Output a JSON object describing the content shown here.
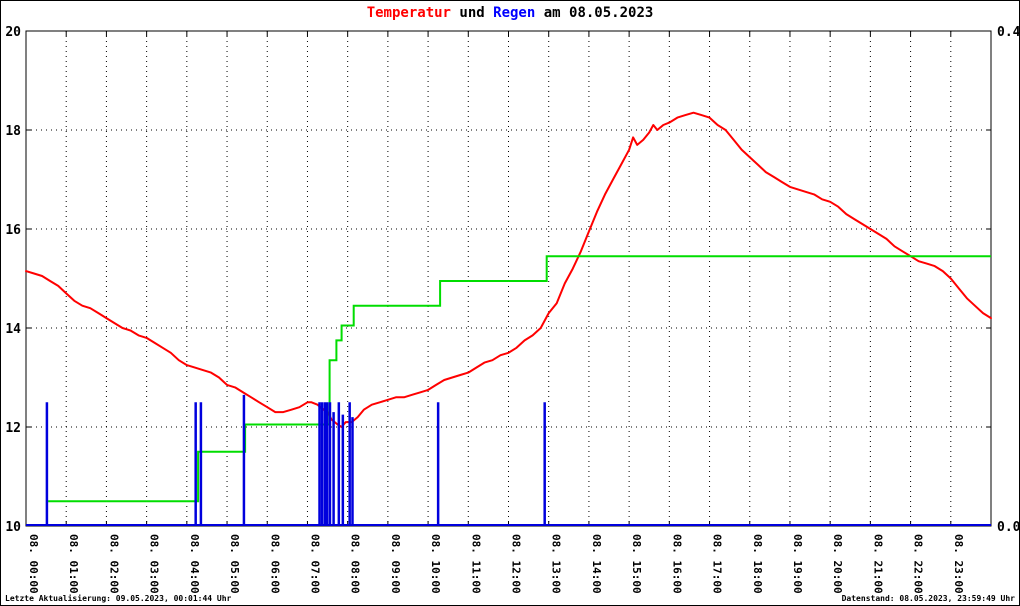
{
  "title": {
    "temperature": "Temperatur",
    "connector": " und ",
    "rain": "Regen",
    "date": " am 08.05.2023"
  },
  "footer": {
    "left": "Letzte Aktualisierung: 09.05.2023, 00:01:44 Uhr",
    "right": "Datenstand: 08.05.2023, 23:59:49 Uhr"
  },
  "colors": {
    "temperature": "#ff0000",
    "rain": "#0000dd",
    "rain_cumulative": "#00dd00",
    "title_rain": "#0000ff",
    "axis": "#000000",
    "background": "#ffffff"
  },
  "chart_data": {
    "type": "line",
    "title": "Temperatur und Regen am 08.05.2023",
    "grid": "dotted",
    "x_axis": {
      "min_hour": 0,
      "max_hour": 24,
      "tick_labels": [
        "08. 00:00",
        "08. 01:00",
        "08. 02:00",
        "08. 03:00",
        "08. 04:00",
        "08. 05:00",
        "08. 06:00",
        "08. 07:00",
        "08. 08:00",
        "08. 09:00",
        "08. 10:00",
        "08. 11:00",
        "08. 12:00",
        "08. 13:00",
        "08. 14:00",
        "08. 15:00",
        "08. 16:00",
        "08. 17:00",
        "08. 18:00",
        "08. 19:00",
        "08. 20:00",
        "08. 21:00",
        "08. 22:00",
        "08. 23:00"
      ]
    },
    "y_axis_left": {
      "min": 10,
      "max": 20,
      "ticks": [
        10,
        12,
        14,
        16,
        18,
        20
      ]
    },
    "y_axis_right": {
      "min": 0.0,
      "max": 0.4,
      "ticks": [
        {
          "value": 0.0,
          "label": "0.0"
        },
        {
          "value": 0.4,
          "label": "0.4"
        }
      ]
    },
    "series": [
      {
        "name": "Temperatur",
        "type": "line",
        "axis": "left",
        "color": "#ff0000",
        "points": [
          [
            0,
            15.15
          ],
          [
            0.2,
            15.1
          ],
          [
            0.4,
            15.05
          ],
          [
            0.6,
            14.95
          ],
          [
            0.8,
            14.85
          ],
          [
            1,
            14.7
          ],
          [
            1.2,
            14.55
          ],
          [
            1.4,
            14.45
          ],
          [
            1.6,
            14.4
          ],
          [
            1.8,
            14.3
          ],
          [
            2,
            14.2
          ],
          [
            2.2,
            14.1
          ],
          [
            2.4,
            14.0
          ],
          [
            2.6,
            13.95
          ],
          [
            2.8,
            13.85
          ],
          [
            3,
            13.8
          ],
          [
            3.2,
            13.7
          ],
          [
            3.4,
            13.6
          ],
          [
            3.6,
            13.5
          ],
          [
            3.8,
            13.35
          ],
          [
            4,
            13.25
          ],
          [
            4.2,
            13.2
          ],
          [
            4.4,
            13.15
          ],
          [
            4.6,
            13.1
          ],
          [
            4.8,
            13.0
          ],
          [
            5,
            12.85
          ],
          [
            5.2,
            12.8
          ],
          [
            5.4,
            12.7
          ],
          [
            5.6,
            12.6
          ],
          [
            5.8,
            12.5
          ],
          [
            6,
            12.4
          ],
          [
            6.2,
            12.3
          ],
          [
            6.4,
            12.3
          ],
          [
            6.6,
            12.35
          ],
          [
            6.8,
            12.4
          ],
          [
            7,
            12.5
          ],
          [
            7.1,
            12.5
          ],
          [
            7.25,
            12.45
          ],
          [
            7.4,
            12.35
          ],
          [
            7.5,
            12.3
          ],
          [
            7.6,
            12.15
          ],
          [
            7.75,
            12.05
          ],
          [
            7.85,
            12.0
          ],
          [
            7.95,
            12.1
          ],
          [
            8.1,
            12.1
          ],
          [
            8.25,
            12.2
          ],
          [
            8.4,
            12.35
          ],
          [
            8.6,
            12.45
          ],
          [
            8.8,
            12.5
          ],
          [
            9,
            12.55
          ],
          [
            9.2,
            12.6
          ],
          [
            9.4,
            12.6
          ],
          [
            9.6,
            12.65
          ],
          [
            9.8,
            12.7
          ],
          [
            10,
            12.75
          ],
          [
            10.2,
            12.85
          ],
          [
            10.4,
            12.95
          ],
          [
            10.6,
            13.0
          ],
          [
            10.8,
            13.05
          ],
          [
            11,
            13.1
          ],
          [
            11.2,
            13.2
          ],
          [
            11.4,
            13.3
          ],
          [
            11.6,
            13.35
          ],
          [
            11.8,
            13.45
          ],
          [
            12,
            13.5
          ],
          [
            12.2,
            13.6
          ],
          [
            12.4,
            13.75
          ],
          [
            12.6,
            13.85
          ],
          [
            12.8,
            14.0
          ],
          [
            13,
            14.3
          ],
          [
            13.2,
            14.5
          ],
          [
            13.4,
            14.9
          ],
          [
            13.6,
            15.2
          ],
          [
            13.8,
            15.55
          ],
          [
            14,
            15.95
          ],
          [
            14.2,
            16.35
          ],
          [
            14.4,
            16.7
          ],
          [
            14.6,
            17.0
          ],
          [
            14.8,
            17.3
          ],
          [
            15,
            17.6
          ],
          [
            15.1,
            17.85
          ],
          [
            15.2,
            17.7
          ],
          [
            15.35,
            17.8
          ],
          [
            15.5,
            17.95
          ],
          [
            15.6,
            18.1
          ],
          [
            15.7,
            18.0
          ],
          [
            15.85,
            18.1
          ],
          [
            16,
            18.15
          ],
          [
            16.2,
            18.25
          ],
          [
            16.4,
            18.3
          ],
          [
            16.6,
            18.35
          ],
          [
            16.8,
            18.3
          ],
          [
            17,
            18.25
          ],
          [
            17.2,
            18.1
          ],
          [
            17.4,
            18.0
          ],
          [
            17.6,
            17.8
          ],
          [
            17.8,
            17.6
          ],
          [
            18,
            17.45
          ],
          [
            18.2,
            17.3
          ],
          [
            18.4,
            17.15
          ],
          [
            18.6,
            17.05
          ],
          [
            18.8,
            16.95
          ],
          [
            19,
            16.85
          ],
          [
            19.2,
            16.8
          ],
          [
            19.4,
            16.75
          ],
          [
            19.6,
            16.7
          ],
          [
            19.8,
            16.6
          ],
          [
            20,
            16.55
          ],
          [
            20.2,
            16.45
          ],
          [
            20.4,
            16.3
          ],
          [
            20.6,
            16.2
          ],
          [
            20.8,
            16.1
          ],
          [
            21,
            16.0
          ],
          [
            21.2,
            15.9
          ],
          [
            21.4,
            15.8
          ],
          [
            21.6,
            15.65
          ],
          [
            21.8,
            15.55
          ],
          [
            22,
            15.45
          ],
          [
            22.2,
            15.35
          ],
          [
            22.4,
            15.3
          ],
          [
            22.6,
            15.25
          ],
          [
            22.8,
            15.15
          ],
          [
            23,
            15.0
          ],
          [
            23.2,
            14.8
          ],
          [
            23.4,
            14.6
          ],
          [
            23.6,
            14.45
          ],
          [
            23.8,
            14.3
          ],
          [
            24,
            14.2
          ]
        ]
      },
      {
        "name": "Regen kumuliert",
        "type": "step",
        "axis": "right",
        "color": "#00dd00",
        "points": [
          [
            0.55,
            0.02
          ],
          [
            4.28,
            0.06
          ],
          [
            5.45,
            0.082
          ],
          [
            7.55,
            0.134
          ],
          [
            7.72,
            0.15
          ],
          [
            7.85,
            0.162
          ],
          [
            8.15,
            0.178
          ],
          [
            10.3,
            0.198
          ],
          [
            12.95,
            0.218
          ],
          [
            24,
            0.218
          ]
        ]
      },
      {
        "name": "Regen",
        "type": "impulse",
        "axis": "right",
        "color": "#0000dd",
        "points": [
          [
            0.52,
            0.1
          ],
          [
            4.22,
            0.1
          ],
          [
            4.35,
            0.1
          ],
          [
            5.42,
            0.106
          ],
          [
            7.3,
            0.1
          ],
          [
            7.36,
            0.1
          ],
          [
            7.43,
            0.1
          ],
          [
            7.49,
            0.1
          ],
          [
            7.56,
            0.1
          ],
          [
            7.65,
            0.092
          ],
          [
            7.78,
            0.1
          ],
          [
            7.88,
            0.09
          ],
          [
            8.05,
            0.1
          ],
          [
            8.12,
            0.088
          ],
          [
            10.25,
            0.1
          ],
          [
            12.9,
            0.1
          ]
        ]
      },
      {
        "name": "Regen Basislinie",
        "type": "baseline",
        "axis": "right",
        "color": "#0000dd",
        "value": 0
      }
    ]
  }
}
